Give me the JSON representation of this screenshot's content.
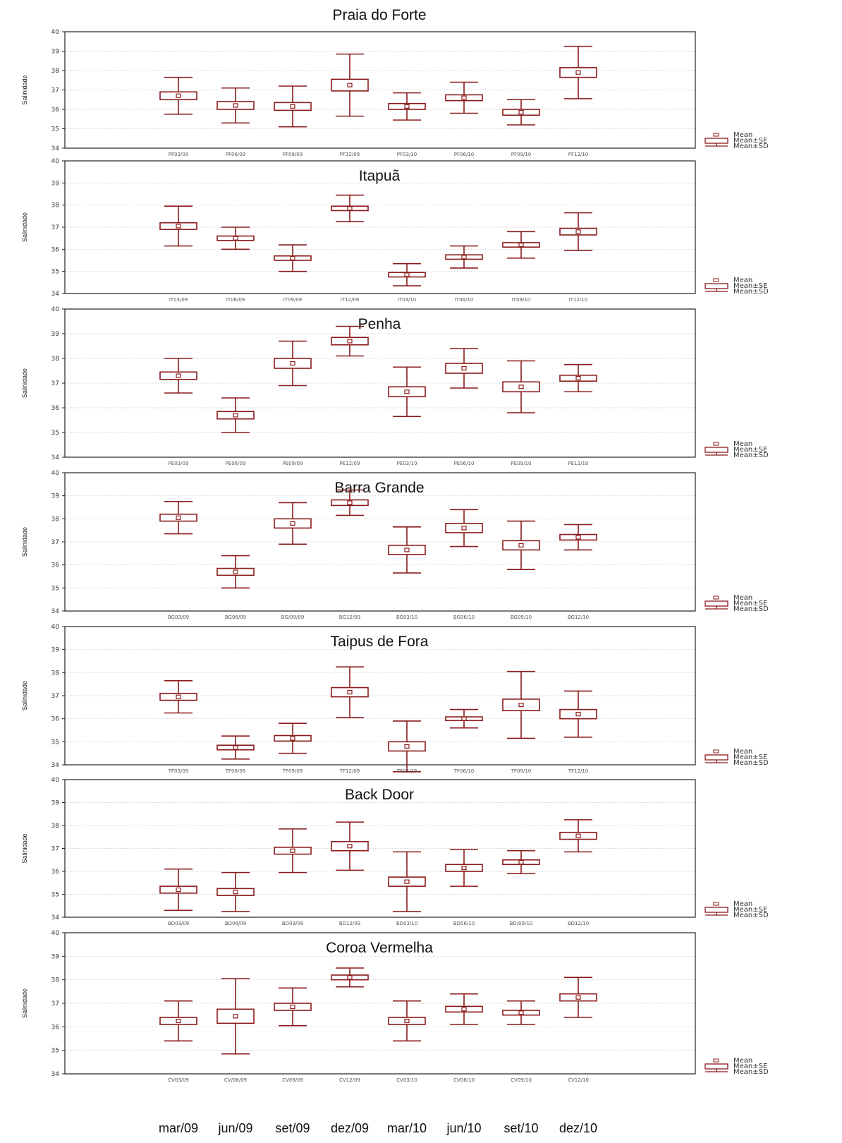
{
  "chart_data": [
    {
      "type": "boxplot",
      "title": "Praia do Forte",
      "ylabel": "Salinidade",
      "ylim": [
        34,
        40
      ],
      "yticks": [
        34,
        35,
        36,
        37,
        38,
        39,
        40
      ],
      "categories": [
        "PF03/09",
        "PF06/09",
        "PF09/09",
        "PF12/09",
        "PF03/10",
        "PF06/10",
        "PF09/10",
        "PF12/10"
      ],
      "mean": [
        36.7,
        36.2,
        36.15,
        37.25,
        36.15,
        36.6,
        35.85,
        37.9
      ],
      "se": [
        0.2,
        0.2,
        0.2,
        0.3,
        0.15,
        0.15,
        0.15,
        0.25
      ],
      "sd": [
        0.95,
        0.9,
        1.05,
        1.6,
        0.7,
        0.8,
        0.65,
        1.35
      ],
      "legend": [
        "Mean",
        "Mean±SE",
        "Mean±SD"
      ]
    },
    {
      "type": "boxplot",
      "title": "Itapuã",
      "ylabel": "Salinidade",
      "ylim": [
        34,
        40
      ],
      "yticks": [
        34,
        35,
        36,
        37,
        38,
        39,
        40
      ],
      "categories": [
        "IT03/09",
        "IT06/09",
        "IT09/09",
        "IT12/09",
        "IT03/10",
        "IT06/10",
        "IT09/10",
        "IT12/10"
      ],
      "mean": [
        37.05,
        36.5,
        35.6,
        37.85,
        34.85,
        35.65,
        36.2,
        36.8
      ],
      "se": [
        0.15,
        0.1,
        0.1,
        0.1,
        0.1,
        0.1,
        0.1,
        0.15
      ],
      "sd": [
        0.9,
        0.5,
        0.6,
        0.6,
        0.5,
        0.5,
        0.6,
        0.85
      ],
      "legend": [
        "Mean",
        "Mean±SE",
        "Mean±SD"
      ]
    },
    {
      "type": "boxplot",
      "title": "Penha",
      "ylabel": "Salinidade",
      "ylim": [
        34,
        40
      ],
      "yticks": [
        34,
        35,
        36,
        37,
        38,
        39,
        40
      ],
      "categories": [
        "PE03/09",
        "PE06/09",
        "PE09/09",
        "PE12/09",
        "PE03/10",
        "PE06/10",
        "PE09/10",
        "PE12/10"
      ],
      "mean": [
        37.3,
        35.7,
        37.8,
        38.7,
        36.65,
        37.6,
        36.85,
        37.2
      ],
      "se": [
        0.15,
        0.15,
        0.2,
        0.15,
        0.2,
        0.2,
        0.2,
        0.12
      ],
      "sd": [
        0.7,
        0.7,
        0.9,
        0.6,
        1.0,
        0.8,
        1.05,
        0.55
      ],
      "legend": [
        "Mean",
        "Mean±SE",
        "Mean±SD"
      ]
    },
    {
      "type": "boxplot",
      "title": "Barra Grande",
      "ylabel": "Salinidade",
      "ylim": [
        34,
        40
      ],
      "yticks": [
        34,
        35,
        36,
        37,
        38,
        39,
        40
      ],
      "categories": [
        "BG03/09",
        "BG06/09",
        "BG/09/09",
        "BG12/09",
        "BG03/10",
        "BG06/10",
        "BG09/10",
        "BG12/10"
      ],
      "mean": [
        38.05,
        35.7,
        37.8,
        38.7,
        36.65,
        37.6,
        36.85,
        37.2
      ],
      "se": [
        0.15,
        0.15,
        0.2,
        0.12,
        0.2,
        0.2,
        0.2,
        0.12
      ],
      "sd": [
        0.7,
        0.7,
        0.9,
        0.55,
        1.0,
        0.8,
        1.05,
        0.55
      ],
      "legend": [
        "Mean",
        "Mean±SE",
        "Mean±SD"
      ]
    },
    {
      "type": "boxplot",
      "title": "Taipus de Fora",
      "ylabel": "Salinidade",
      "ylim": [
        34,
        40
      ],
      "yticks": [
        34,
        35,
        36,
        37,
        38,
        39,
        40
      ],
      "categories": [
        "TF03/09",
        "TF06/09",
        "TF09/09",
        "TF12/09",
        "TF03/10",
        "TF06/10",
        "TF09/10",
        "TF12/10"
      ],
      "mean": [
        36.95,
        34.75,
        35.15,
        37.15,
        34.8,
        36.0,
        36.6,
        36.2
      ],
      "se": [
        0.15,
        0.1,
        0.12,
        0.2,
        0.2,
        0.08,
        0.25,
        0.2
      ],
      "sd": [
        0.7,
        0.5,
        0.65,
        1.1,
        1.1,
        0.4,
        1.45,
        1.0
      ],
      "legend": [
        "Mean",
        "Mean±SE",
        "Mean±SD"
      ]
    },
    {
      "type": "boxplot",
      "title": "Back Door",
      "ylabel": "Salinidade",
      "ylim": [
        34,
        40
      ],
      "yticks": [
        34,
        35,
        36,
        37,
        38,
        39,
        40
      ],
      "categories": [
        "BD03/09",
        "BD06/09",
        "BD09/09",
        "BD12/09",
        "BD03/10",
        "BD06/10",
        "BD/09/10",
        "BD12/10"
      ],
      "mean": [
        35.2,
        35.1,
        36.9,
        37.1,
        35.55,
        36.15,
        36.4,
        37.55
      ],
      "se": [
        0.15,
        0.15,
        0.15,
        0.2,
        0.2,
        0.15,
        0.1,
        0.15
      ],
      "sd": [
        0.9,
        0.85,
        0.95,
        1.05,
        1.3,
        0.8,
        0.5,
        0.7
      ],
      "legend": [
        "Mean",
        "Mean±SE",
        "Mean±SD"
      ]
    },
    {
      "type": "boxplot",
      "title": "Coroa Vermelha",
      "ylabel": "Salinidade",
      "ylim": [
        34,
        40
      ],
      "yticks": [
        34,
        35,
        36,
        37,
        38,
        39,
        40
      ],
      "categories": [
        "CV03/09",
        "CV/06/09",
        "CV09/09",
        "CV12/09",
        "CV03/10",
        "CV06/10",
        "CV09/10",
        "CV12/10"
      ],
      "mean": [
        36.25,
        36.45,
        36.85,
        38.1,
        36.25,
        36.75,
        36.6,
        37.25
      ],
      "se": [
        0.15,
        0.3,
        0.15,
        0.1,
        0.15,
        0.12,
        0.1,
        0.15
      ],
      "sd": [
        0.85,
        1.6,
        0.8,
        0.4,
        0.85,
        0.65,
        0.5,
        0.85
      ],
      "legend": [
        "Mean",
        "Mean±SE",
        "Mean±SD"
      ]
    }
  ],
  "bottom_labels": [
    "mar/09",
    "jun/09",
    "set/09",
    "dez/09",
    "mar/10",
    "jun/10",
    "set/10",
    "dez/10"
  ],
  "colors": {
    "series": "#8b1a1a",
    "grid": "#bbbbbb",
    "axis": "#222222"
  }
}
